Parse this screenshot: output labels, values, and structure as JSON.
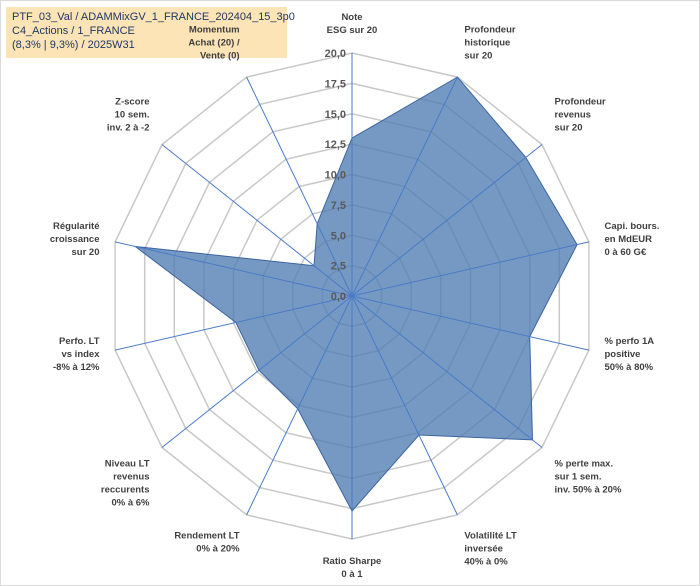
{
  "title": {
    "lines": [
      "PTF_03_Val / ADAMMixGV_1_FRANCE_202404_15_3p0",
      "C4_Actions / 1_FRANCE",
      "(8,3% | 9,3%) / 2025W31"
    ]
  },
  "colors": {
    "fill": "#4f7cb4",
    "stroke": "#3b64a0",
    "grid": "#c8c8c8",
    "spoke": "#4a7bc8",
    "title_bg": "#fce4b6"
  },
  "chart_data": {
    "type": "radar",
    "ylim": [
      0,
      20
    ],
    "grid": true,
    "tick_labels": [
      "0,0",
      "2,5",
      "5,0",
      "7,5",
      "10,0",
      "12,5",
      "15,0",
      "17,5",
      "20,0"
    ],
    "categories": [
      [
        "Note",
        "ESG sur 20"
      ],
      [
        "Profondeur",
        "historique",
        "sur 20"
      ],
      [
        "Profondeur",
        "revenus",
        "sur 20"
      ],
      [
        "Capi. bours.",
        "en MdEUR",
        "0 à 60 G€"
      ],
      [
        "% perfo 1A",
        "positive",
        "50% à 80%"
      ],
      [
        "% perte max.",
        "sur 1 sem.",
        "inv. 50% à 20%"
      ],
      [
        "Volatilité LT",
        "inversée",
        "40% à 0%"
      ],
      [
        "Ratio Sharpe",
        "0 à 1"
      ],
      [
        "Rendement LT",
        "0% à 20%"
      ],
      [
        "Niveau LT",
        "revenus",
        "reccurents",
        "0% à 6%"
      ],
      [
        "Perfo. LT",
        "vs index",
        "-8% à 12%"
      ],
      [
        "Régularité",
        "croissance",
        "sur 20"
      ],
      [
        "Z-score",
        "10 sem.",
        "inv. 2 à -2"
      ],
      [
        "Momentum",
        "Achat (20) /",
        "Vente (0)"
      ]
    ],
    "series": [
      {
        "values": [
          13,
          20,
          18.3,
          19,
          15,
          19,
          12.7,
          17.7,
          10.3,
          9.8,
          9.8,
          18.3,
          4,
          6.6
        ]
      }
    ]
  }
}
